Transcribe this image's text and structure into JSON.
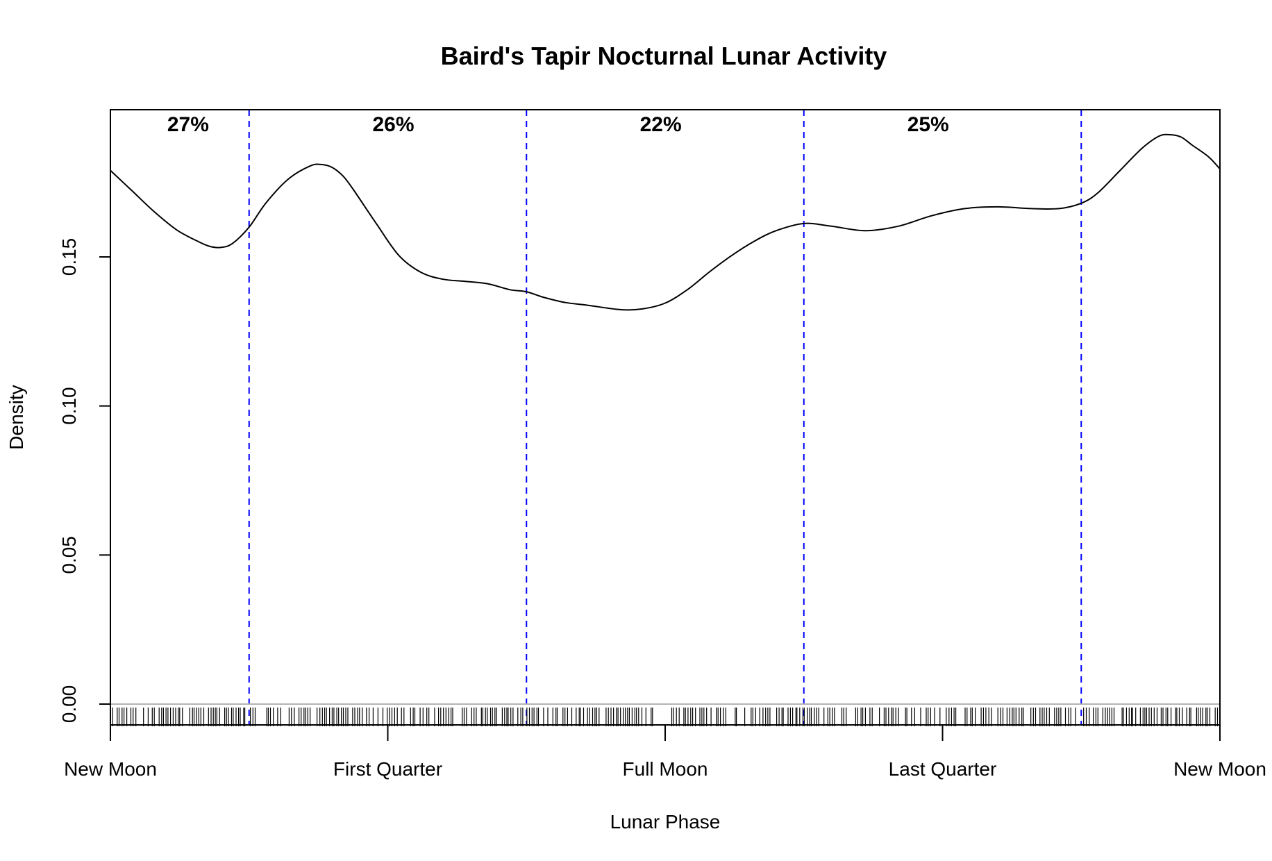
{
  "chart_data": {
    "type": "line",
    "title": "Baird's Tapir Nocturnal Lunar Activity",
    "xlabel": "Lunar Phase",
    "ylabel": "Density",
    "xlim": [
      0,
      1
    ],
    "ylim": [
      -0.008,
      0.2
    ],
    "x_ticks": [
      {
        "value": 0,
        "label": "New Moon"
      },
      {
        "value": 0.25,
        "label": "First Quarter"
      },
      {
        "value": 0.5,
        "label": "Full Moon"
      },
      {
        "value": 0.75,
        "label": "Last Quarter"
      },
      {
        "value": 1,
        "label": "New Moon"
      }
    ],
    "y_ticks": [
      {
        "value": 0.0,
        "label": "0.00"
      },
      {
        "value": 0.05,
        "label": "0.05"
      },
      {
        "value": 0.1,
        "label": "0.10"
      },
      {
        "value": 0.15,
        "label": "0.15"
      }
    ],
    "colors": {
      "curve": "#000000",
      "divider": "#0000ff",
      "baseline": "#b3b3b3",
      "rug": "#000000"
    },
    "period_dividers": [
      0.125,
      0.375,
      0.625,
      0.875
    ],
    "period_labels": [
      {
        "x": 0.07,
        "label": "27%"
      },
      {
        "x": 0.255,
        "label": "26%"
      },
      {
        "x": 0.496,
        "label": "22%"
      },
      {
        "x": 0.737,
        "label": "25%"
      }
    ],
    "series": [
      {
        "x": [
          0,
          0.02,
          0.04,
          0.06,
          0.08,
          0.09,
          0.1,
          0.11,
          0.125,
          0.14,
          0.16,
          0.18,
          0.19,
          0.2,
          0.21,
          0.22,
          0.24,
          0.26,
          0.28,
          0.3,
          0.32,
          0.34,
          0.36,
          0.375,
          0.39,
          0.41,
          0.43,
          0.46,
          0.48,
          0.5,
          0.52,
          0.54,
          0.56,
          0.58,
          0.6,
          0.625,
          0.65,
          0.68,
          0.71,
          0.74,
          0.77,
          0.8,
          0.83,
          0.855,
          0.875,
          0.89,
          0.91,
          0.93,
          0.945,
          0.955,
          0.965,
          0.975,
          0.99,
          1.0
        ],
        "y": [
          0.179,
          0.172,
          0.165,
          0.159,
          0.155,
          0.1535,
          0.1532,
          0.1545,
          0.16,
          0.168,
          0.176,
          0.1805,
          0.181,
          0.18,
          0.177,
          0.172,
          0.161,
          0.1505,
          0.1448,
          0.1425,
          0.1418,
          0.141,
          0.139,
          0.1383,
          0.1365,
          0.1347,
          0.1338,
          0.1323,
          0.1326,
          0.1345,
          0.139,
          0.145,
          0.1505,
          0.1552,
          0.1588,
          0.1612,
          0.1603,
          0.1588,
          0.1603,
          0.1638,
          0.1662,
          0.1668,
          0.1662,
          0.1662,
          0.168,
          0.1715,
          0.179,
          0.1865,
          0.1905,
          0.191,
          0.1902,
          0.1875,
          0.1835,
          0.1795
        ]
      }
    ],
    "rug_gap": [
      0.491,
      0.504
    ]
  }
}
